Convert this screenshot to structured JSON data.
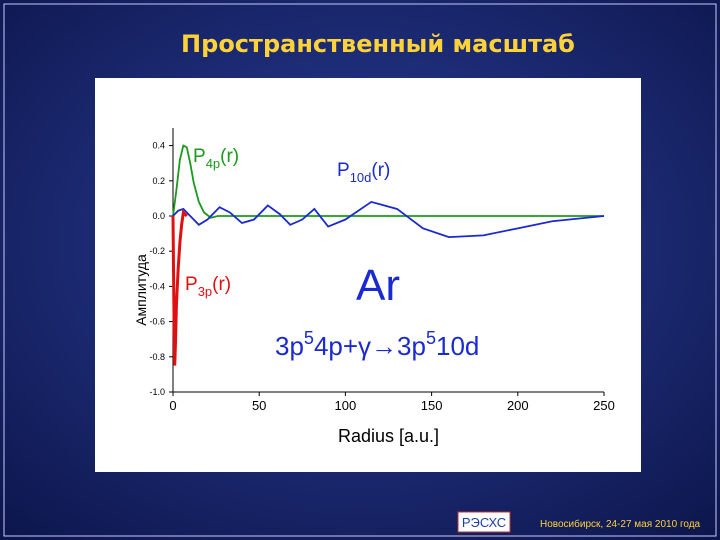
{
  "slide": {
    "title": "Пространственный масштаб",
    "logo": "РЭСХС",
    "footer": "Новосибирск, 24-27 мая 2010 года"
  },
  "chart_data": {
    "type": "line",
    "x_label": "Radius [a.u.]",
    "y_label": "Амплитуда",
    "xlim": [
      0,
      250
    ],
    "xticks": [
      0,
      50,
      100,
      150,
      200,
      250
    ],
    "ylim": [
      -1.0,
      0.5
    ],
    "yticks": [
      0.4,
      0.2,
      {
        "value": 0,
        "label": "0.0"
      },
      -0.2,
      -0.4,
      -0.6,
      -0.8,
      {
        "value": -1.0,
        "label": "-1.0"
      }
    ],
    "series": [
      {
        "name": "P4p",
        "color": "#1a9a1a",
        "label_text": [
          "P",
          "4p",
          "(r)"
        ],
        "x": [
          0,
          2,
          4,
          6,
          8,
          10,
          12,
          15,
          18,
          22,
          26,
          30,
          250
        ],
        "values": [
          0,
          0.15,
          0.32,
          0.4,
          0.39,
          0.3,
          0.19,
          0.08,
          0.02,
          -0.01,
          0,
          0,
          0
        ]
      },
      {
        "name": "P10d",
        "color": "#1a2ad0",
        "label_text": [
          "P",
          "10d",
          "(r)"
        ],
        "x": [
          0,
          3,
          6,
          10,
          15,
          20,
          27,
          33,
          40,
          47,
          55,
          62,
          68,
          75,
          82,
          90,
          100,
          115,
          130,
          145,
          160,
          180,
          200,
          220,
          240,
          250
        ],
        "values": [
          0,
          0.03,
          0.04,
          0,
          -0.05,
          -0.02,
          0.05,
          0.02,
          -0.04,
          -0.02,
          0.06,
          0.01,
          -0.05,
          -0.02,
          0.04,
          -0.06,
          -0.02,
          0.08,
          0.04,
          -0.07,
          -0.12,
          -0.11,
          -0.07,
          -0.03,
          -0.01,
          0
        ]
      },
      {
        "name": "P3p",
        "color": "#e01010",
        "label_text": [
          "P",
          "3p",
          "(r)"
        ],
        "x": [
          0,
          0.5,
          1,
          1.5,
          2,
          3,
          4,
          5,
          6,
          8
        ],
        "values": [
          0,
          -0.5,
          -0.85,
          -0.7,
          -0.5,
          -0.3,
          -0.15,
          -0.05,
          0.02,
          0
        ]
      }
    ],
    "element": "Ar",
    "reaction": [
      {
        "t": "3p"
      },
      {
        "t": "5",
        "sup": true
      },
      {
        "t": "4p+γ→3p"
      },
      {
        "t": "5",
        "sup": true
      },
      {
        "t": "10d"
      }
    ]
  }
}
